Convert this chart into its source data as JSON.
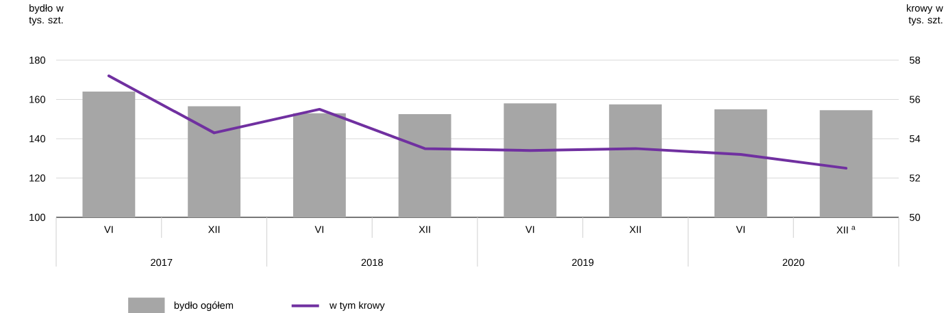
{
  "chart_data": {
    "type": "bar",
    "ylabel": "bydło w tys. szt.",
    "y2label": "krowy w tys. szt.",
    "categories": [
      "VI",
      "XII",
      "VI",
      "XII",
      "VI",
      "XII",
      "VI",
      "XII $^{a}$"
    ],
    "series": [
      {
        "name": "bydło ogółem",
        "color": "#a6a6a6",
        "values": [
          164,
          156.5,
          153,
          152.5,
          158,
          157.5,
          155,
          154.5
        ]
      },
      {
        "name": "w tym krowy",
        "type": "line",
        "axis": "y2",
        "color": "#7030a0",
        "values": [
          57.2,
          54.3,
          55.5,
          53.5,
          53.4,
          53.5,
          53.2,
          52.5
        ]
      }
    ],
    "ylim": [
      100,
      180
    ],
    "yticks": [
      100,
      120,
      140,
      160,
      180
    ],
    "y2lim": [
      50,
      58
    ],
    "y2ticks": [
      50,
      52,
      54,
      56,
      58
    ],
    "grid": "y",
    "legend": "bottom",
    "marker": "none",
    "annotations": [
      "2017",
      "2018",
      "2019",
      "2020"
    ]
  }
}
